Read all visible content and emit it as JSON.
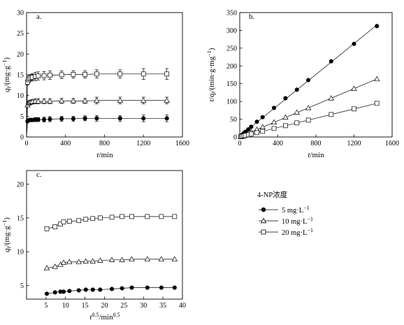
{
  "chart_data": [
    {
      "type": "scatter",
      "panel_label": "a.",
      "ylabel_main": "q",
      "ylabel_sub": "t",
      "ylabel_rest": "/(mg·g",
      "ylabel_sup": "−1",
      "ylabel_end": ")",
      "xlabel_main": "t",
      "xlabel_rest": "/min",
      "xlim": [
        0,
        1600
      ],
      "ylim": [
        0,
        30
      ],
      "xticks": [
        0,
        400,
        800,
        1200,
        1600
      ],
      "yticks": [
        0,
        5,
        10,
        15,
        20,
        25,
        30
      ],
      "grid": false,
      "series": [
        {
          "marker": "filled-circle",
          "x": [
            10,
            20,
            30,
            45,
            60,
            90,
            120,
            180,
            240,
            360,
            480,
            600,
            720,
            960,
            1200,
            1440
          ],
          "y": [
            3.8,
            4.0,
            4.1,
            4.1,
            4.1,
            4.2,
            4.2,
            4.2,
            4.3,
            4.4,
            4.4,
            4.5,
            4.5,
            4.5,
            4.5,
            4.5
          ],
          "err": [
            0.3,
            0.3,
            0.3,
            0.3,
            0.4,
            0.5,
            0.5,
            0.6,
            0.6,
            0.6,
            0.6,
            0.6,
            0.7,
            0.7,
            0.8,
            0.8
          ]
        },
        {
          "marker": "open-triangle",
          "x": [
            10,
            20,
            30,
            45,
            60,
            90,
            120,
            180,
            240,
            360,
            480,
            600,
            720,
            960,
            1200,
            1440
          ],
          "y": [
            7.7,
            8.1,
            8.3,
            8.4,
            8.5,
            8.6,
            8.6,
            8.6,
            8.6,
            8.7,
            8.7,
            8.7,
            8.8,
            8.8,
            8.8,
            8.8
          ],
          "err": [
            0.4,
            0.5,
            0.5,
            0.5,
            0.5,
            0.6,
            0.6,
            0.6,
            0.6,
            0.6,
            0.6,
            0.6,
            0.8,
            0.8,
            0.8,
            0.8
          ]
        },
        {
          "marker": "open-square",
          "x": [
            10,
            20,
            30,
            45,
            60,
            90,
            120,
            180,
            240,
            360,
            480,
            600,
            720,
            960,
            1200,
            1440
          ],
          "y": [
            13.2,
            13.8,
            14.1,
            14.3,
            14.4,
            14.6,
            14.7,
            14.8,
            14.9,
            15.0,
            15.1,
            15.1,
            15.2,
            15.2,
            15.2,
            15.2
          ],
          "err": [
            0.7,
            0.8,
            0.8,
            0.8,
            0.9,
            1.0,
            1.0,
            1.0,
            1.0,
            0.9,
            0.9,
            0.9,
            1.0,
            1.0,
            1.3,
            1.3
          ]
        }
      ]
    },
    {
      "type": "scatter",
      "panel_label": "b.",
      "ylabel_main": "t",
      "ylabel_rest": "/q",
      "ylabel_sub": "t",
      "ylabel_rest2": "/(min·g·mg",
      "ylabel_sup": "−1",
      "ylabel_end": ")",
      "xlabel_main": "t",
      "xlabel_rest": "/min",
      "xlim": [
        0,
        1600
      ],
      "ylim": [
        0,
        350
      ],
      "xticks": [
        0,
        400,
        800,
        1200,
        1600
      ],
      "yticks": [
        0,
        50,
        100,
        150,
        200,
        250,
        300,
        350
      ],
      "grid": false,
      "series": [
        {
          "marker": "filled-circle",
          "x": [
            10,
            20,
            30,
            45,
            60,
            90,
            120,
            180,
            240,
            360,
            480,
            600,
            720,
            960,
            1200,
            1440
          ],
          "y": [
            2.6,
            5.0,
            7.3,
            11.0,
            14.6,
            21.4,
            28.6,
            42.9,
            55.8,
            81.8,
            109,
            133,
            160,
            213,
            262,
            312
          ]
        },
        {
          "marker": "open-triangle",
          "x": [
            10,
            20,
            30,
            45,
            60,
            90,
            120,
            180,
            240,
            360,
            480,
            600,
            720,
            960,
            1200,
            1440
          ],
          "y": [
            1.3,
            2.5,
            3.6,
            5.4,
            7.1,
            10.5,
            14.0,
            20.9,
            27.9,
            41.4,
            55.2,
            69.0,
            81.8,
            109,
            136,
            163
          ]
        },
        {
          "marker": "open-square",
          "x": [
            10,
            20,
            30,
            45,
            60,
            90,
            120,
            180,
            240,
            360,
            480,
            600,
            720,
            960,
            1200,
            1440
          ],
          "y": [
            0.8,
            1.4,
            2.1,
            3.1,
            4.2,
            6.2,
            8.2,
            12.2,
            16.1,
            24.0,
            31.8,
            39.7,
            47.4,
            63.2,
            79.0,
            94.7
          ]
        }
      ]
    },
    {
      "type": "line",
      "panel_label": "c.",
      "ylabel_main": "q",
      "ylabel_sub": "t",
      "ylabel_rest": "/(mg·g",
      "ylabel_sup": "−1",
      "ylabel_end": ")",
      "xlabel_main": "t",
      "xlabel_sup": "0.5",
      "xlabel_rest": "/min",
      "xlabel_sup2": "0.5",
      "xlim": [
        0,
        40
      ],
      "ylim": [
        3,
        22
      ],
      "xticks": [
        5,
        10,
        15,
        20,
        25,
        30,
        35,
        40
      ],
      "yticks": [
        5,
        10,
        15,
        20
      ],
      "grid": false,
      "series": [
        {
          "marker": "filled-circle",
          "x": [
            5.2,
            7.3,
            8.7,
            9.5,
            11.0,
            13.4,
            15.2,
            17.0,
            18.9,
            21.9,
            24.5,
            27.0,
            31.0,
            34.6,
            38.0
          ],
          "y": [
            3.8,
            4.0,
            4.1,
            4.1,
            4.2,
            4.3,
            4.4,
            4.4,
            4.4,
            4.5,
            4.6,
            4.7,
            4.7,
            4.7,
            4.7
          ]
        },
        {
          "marker": "open-triangle",
          "x": [
            5.2,
            7.3,
            8.7,
            9.5,
            11.0,
            13.4,
            15.2,
            17.0,
            18.9,
            21.9,
            24.5,
            27.0,
            31.0,
            34.6,
            38.0
          ],
          "y": [
            7.6,
            7.8,
            8.1,
            8.4,
            8.5,
            8.5,
            8.6,
            8.6,
            8.7,
            8.8,
            8.8,
            8.9,
            8.9,
            8.9,
            8.9
          ]
        },
        {
          "marker": "open-square",
          "x": [
            5.2,
            7.3,
            8.7,
            9.5,
            11.0,
            13.4,
            15.2,
            17.0,
            18.9,
            21.9,
            24.5,
            27.0,
            31.0,
            34.6,
            38.0
          ],
          "y": [
            13.4,
            13.7,
            14.1,
            14.4,
            14.5,
            14.6,
            14.8,
            14.9,
            15.0,
            15.1,
            15.2,
            15.2,
            15.2,
            15.2,
            15.2
          ]
        }
      ]
    }
  ],
  "legend": {
    "title": "4-NP浓度",
    "entries": [
      {
        "value": "5",
        "unit": " mg·L",
        "sup": "−1",
        "marker": "filled-circle"
      },
      {
        "value": "10",
        "unit": " mg·L",
        "sup": "−1",
        "marker": "open-triangle"
      },
      {
        "value": "20",
        "unit": " mg·L",
        "sup": "−1",
        "marker": "open-square"
      }
    ]
  }
}
